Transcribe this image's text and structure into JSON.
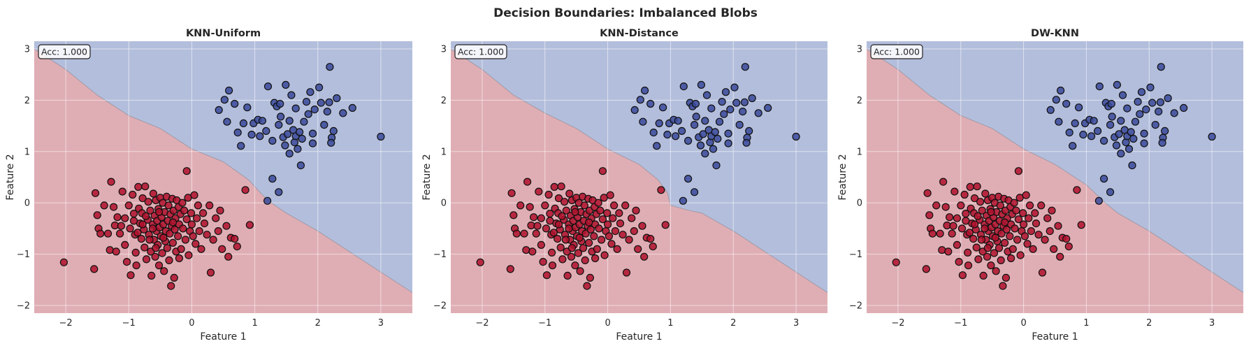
{
  "figure": {
    "title": "Decision Boundaries: Imbalanced Blobs"
  },
  "colors": {
    "region_class0": "#dfaeb4",
    "region_class1": "#b3bedc",
    "point_class0": "#b0112b",
    "point_class1": "#3a4a9a",
    "point_edge": "#111111",
    "boundary_edge": "#8f8f9a"
  },
  "chart_data": [
    {
      "type": "scatter",
      "title": "KNN-Uniform",
      "xlabel": "Feature 1",
      "ylabel": "Feature 2",
      "xlim": [
        -2.5,
        3.5
      ],
      "ylim": [
        -2.15,
        3.15
      ],
      "xticks": [
        "−2",
        "−1",
        "0",
        "1",
        "2",
        "3"
      ],
      "yticks": [
        "−2",
        "−1",
        "0",
        "1",
        "2",
        "3"
      ],
      "grid": true,
      "annotation": "Acc: 1.000",
      "boundary": [
        [
          -2.5,
          3.0
        ],
        [
          -2.0,
          2.6
        ],
        [
          -1.5,
          2.1
        ],
        [
          -1.0,
          1.7
        ],
        [
          -0.5,
          1.45
        ],
        [
          0.0,
          1.05
        ],
        [
          0.5,
          0.8
        ],
        [
          0.9,
          0.45
        ],
        [
          1.2,
          0.05
        ],
        [
          1.5,
          -0.2
        ],
        [
          2.0,
          -0.55
        ],
        [
          2.5,
          -0.95
        ],
        [
          3.0,
          -1.35
        ],
        [
          3.5,
          -1.75
        ]
      ]
    },
    {
      "type": "scatter",
      "title": "KNN-Distance",
      "xlabel": "Feature 1",
      "ylabel": "Feature 2",
      "xlim": [
        -2.5,
        3.5
      ],
      "ylim": [
        -2.15,
        3.15
      ],
      "xticks": [
        "−2",
        "−1",
        "0",
        "1",
        "2",
        "3"
      ],
      "yticks": [
        "−2",
        "−1",
        "0",
        "1",
        "2",
        "3"
      ],
      "grid": true,
      "annotation": "Acc: 1.000",
      "boundary": [
        [
          -2.5,
          3.0
        ],
        [
          -2.0,
          2.6
        ],
        [
          -1.5,
          2.1
        ],
        [
          -1.0,
          1.75
        ],
        [
          -0.5,
          1.45
        ],
        [
          0.0,
          1.05
        ],
        [
          0.5,
          0.75
        ],
        [
          0.8,
          0.45
        ],
        [
          0.95,
          0.2
        ],
        [
          1.0,
          -0.05
        ],
        [
          1.3,
          -0.15
        ],
        [
          1.5,
          -0.2
        ],
        [
          2.0,
          -0.55
        ],
        [
          2.5,
          -0.95
        ],
        [
          3.0,
          -1.35
        ],
        [
          3.5,
          -1.75
        ]
      ]
    },
    {
      "type": "scatter",
      "title": "DW-KNN",
      "xlabel": "Feature 1",
      "ylabel": "Feature 2",
      "xlim": [
        -2.5,
        3.5
      ],
      "ylim": [
        -2.15,
        3.15
      ],
      "xticks": [
        "−2",
        "−1",
        "0",
        "1",
        "2",
        "3"
      ],
      "yticks": [
        "−2",
        "−1",
        "0",
        "1",
        "2",
        "3"
      ],
      "grid": true,
      "annotation": "Acc: 1.000",
      "boundary": [
        [
          -2.5,
          3.0
        ],
        [
          -2.0,
          2.6
        ],
        [
          -1.5,
          2.1
        ],
        [
          -1.0,
          1.7
        ],
        [
          -0.5,
          1.45
        ],
        [
          0.0,
          1.05
        ],
        [
          0.5,
          0.75
        ],
        [
          1.0,
          0.35
        ],
        [
          1.3,
          0.0
        ],
        [
          1.5,
          -0.2
        ],
        [
          2.0,
          -0.55
        ],
        [
          2.5,
          -0.95
        ],
        [
          3.0,
          -1.35
        ],
        [
          3.5,
          -1.75
        ]
      ]
    }
  ],
  "points": {
    "class0": [
      [
        -2.03,
        -1.16
      ],
      [
        -1.55,
        -1.29
      ],
      [
        -1.53,
        0.19
      ],
      [
        -1.5,
        -0.24
      ],
      [
        -1.48,
        -0.5
      ],
      [
        -1.45,
        -0.6
      ],
      [
        -1.39,
        -0.05
      ],
      [
        -1.33,
        -0.6
      ],
      [
        -1.3,
        -0.92
      ],
      [
        -1.28,
        0.41
      ],
      [
        -1.24,
        -0.08
      ],
      [
        -1.22,
        -0.44
      ],
      [
        -1.2,
        -0.95
      ],
      [
        -1.18,
        -0.28
      ],
      [
        -1.14,
        -0.6
      ],
      [
        -1.1,
        0.22
      ],
      [
        -1.06,
        -0.3
      ],
      [
        -1.06,
        -0.82
      ],
      [
        -1.03,
        -1.15
      ],
      [
        -1.0,
        -0.05
      ],
      [
        -0.98,
        -0.5
      ],
      [
        -0.97,
        -1.41
      ],
      [
        -0.94,
        0.16
      ],
      [
        -0.92,
        -0.21
      ],
      [
        -0.9,
        -0.62
      ],
      [
        -0.89,
        -0.97
      ],
      [
        -0.88,
        -1.22
      ],
      [
        -0.85,
        0.31
      ],
      [
        -0.84,
        -0.11
      ],
      [
        -0.82,
        -0.4
      ],
      [
        -0.8,
        -0.7
      ],
      [
        -0.79,
        -0.2
      ],
      [
        -0.78,
        0.09
      ],
      [
        -0.76,
        -0.52
      ],
      [
        -0.75,
        -0.87
      ],
      [
        -0.74,
        0.32
      ],
      [
        -0.72,
        -1.1
      ],
      [
        -0.7,
        -0.33
      ],
      [
        -0.69,
        0.02
      ],
      [
        -0.68,
        -0.62
      ],
      [
        -0.66,
        -0.15
      ],
      [
        -0.65,
        -0.95
      ],
      [
        -0.64,
        -1.42
      ],
      [
        -0.62,
        -0.42
      ],
      [
        -0.61,
        0.18
      ],
      [
        -0.6,
        -0.72
      ],
      [
        -0.59,
        -0.25
      ],
      [
        -0.58,
        -1.05
      ],
      [
        -0.57,
        0.05
      ],
      [
        -0.56,
        -0.55
      ],
      [
        -0.55,
        -0.35
      ],
      [
        -0.54,
        -0.82
      ],
      [
        -0.53,
        -0.12
      ],
      [
        -0.52,
        -1.22
      ],
      [
        -0.51,
        -0.48
      ],
      [
        -0.5,
        0.1
      ],
      [
        -0.49,
        -0.65
      ],
      [
        -0.48,
        -0.28
      ],
      [
        -0.47,
        -0.98
      ],
      [
        -0.46,
        0.0
      ],
      [
        -0.45,
        -0.42
      ],
      [
        -0.44,
        -1.33
      ],
      [
        -0.43,
        -0.18
      ],
      [
        -0.42,
        -0.75
      ],
      [
        -0.41,
        -0.55
      ],
      [
        -0.4,
        0.12
      ],
      [
        -0.39,
        -0.88
      ],
      [
        -0.38,
        -0.35
      ],
      [
        -0.37,
        -0.05
      ],
      [
        -0.36,
        -1.12
      ],
      [
        -0.35,
        -0.6
      ],
      [
        -0.34,
        -0.22
      ],
      [
        -0.33,
        -1.62
      ],
      [
        -0.32,
        -0.45
      ],
      [
        -0.31,
        0.08
      ],
      [
        -0.3,
        -0.78
      ],
      [
        -0.29,
        -0.15
      ],
      [
        -0.28,
        -1.46
      ],
      [
        -0.27,
        -0.52
      ],
      [
        -0.26,
        -0.3
      ],
      [
        -0.25,
        -0.95
      ],
      [
        -0.24,
        0.05
      ],
      [
        -0.22,
        -0.65
      ],
      [
        -0.21,
        -0.08
      ],
      [
        -0.2,
        -0.42
      ],
      [
        -0.18,
        -0.22
      ],
      [
        -0.17,
        -0.9
      ],
      [
        -0.15,
        0.0
      ],
      [
        -0.14,
        -0.5
      ],
      [
        -0.12,
        -0.15
      ],
      [
        -0.1,
        -0.72
      ],
      [
        -0.08,
        -0.32
      ],
      [
        -0.06,
        0.1
      ],
      [
        -0.05,
        -1.02
      ],
      [
        -0.03,
        -0.55
      ],
      [
        -0.01,
        -0.2
      ],
      [
        0.0,
        -0.42
      ],
      [
        0.02,
        -0.65
      ],
      [
        0.04,
        0.15
      ],
      [
        0.06,
        -0.8
      ],
      [
        0.08,
        -0.3
      ],
      [
        0.1,
        -0.05
      ],
      [
        0.12,
        -0.55
      ],
      [
        0.15,
        -0.9
      ],
      [
        0.18,
        -0.2
      ],
      [
        0.2,
        -0.4
      ],
      [
        0.24,
        -0.62
      ],
      [
        0.28,
        -0.05
      ],
      [
        0.3,
        -1.36
      ],
      [
        0.34,
        -0.72
      ],
      [
        0.38,
        -0.3
      ],
      [
        0.42,
        -0.55
      ],
      [
        0.45,
        -0.15
      ],
      [
        0.48,
        -0.9
      ],
      [
        0.55,
        -0.45
      ],
      [
        0.58,
        -1.05
      ],
      [
        0.62,
        -0.68
      ],
      [
        0.68,
        -0.7
      ],
      [
        0.72,
        -0.85
      ],
      [
        0.85,
        0.25
      ],
      [
        0.92,
        -0.43
      ],
      [
        -0.86,
        -0.58
      ],
      [
        -0.78,
        -0.42
      ],
      [
        -0.67,
        -0.72
      ],
      [
        -0.57,
        -0.88
      ],
      [
        -0.45,
        -0.68
      ],
      [
        -0.3,
        -0.38
      ],
      [
        -0.62,
        -0.5
      ],
      [
        -0.52,
        -0.18
      ],
      [
        -0.73,
        -0.26
      ],
      [
        -0.08,
        0.62
      ],
      [
        -0.92,
        -0.35
      ],
      [
        -1.12,
        -0.45
      ],
      [
        -0.2,
        -1.08
      ]
    ],
    "class1": [
      [
        0.43,
        1.81
      ],
      [
        0.52,
        2.01
      ],
      [
        0.56,
        1.58
      ],
      [
        0.59,
        2.19
      ],
      [
        0.68,
        1.93
      ],
      [
        0.73,
        1.37
      ],
      [
        0.78,
        1.11
      ],
      [
        0.82,
        1.55
      ],
      [
        0.88,
        1.86
      ],
      [
        0.95,
        1.33
      ],
      [
        0.98,
        1.55
      ],
      [
        1.05,
        1.62
      ],
      [
        1.08,
        1.3
      ],
      [
        1.12,
        1.6
      ],
      [
        1.18,
        1.4
      ],
      [
        1.21,
        2.27
      ],
      [
        1.28,
        1.21
      ],
      [
        1.31,
        1.95
      ],
      [
        1.35,
        1.88
      ],
      [
        1.38,
        1.52
      ],
      [
        1.41,
        1.68
      ],
      [
        1.45,
        1.28
      ],
      [
        1.48,
        1.12
      ],
      [
        1.52,
        1.34
      ],
      [
        1.55,
        1.6
      ],
      [
        1.58,
        2.1
      ],
      [
        1.61,
        1.42
      ],
      [
        1.63,
        1.18
      ],
      [
        1.65,
        1.3
      ],
      [
        1.68,
        1.05
      ],
      [
        1.71,
        1.38
      ],
      [
        1.75,
        1.25
      ],
      [
        1.78,
        1.58
      ],
      [
        1.82,
        1.97
      ],
      [
        1.88,
        2.16
      ],
      [
        1.92,
        1.35
      ],
      [
        1.95,
        1.82
      ],
      [
        2.02,
        2.25
      ],
      [
        2.05,
        1.95
      ],
      [
        2.1,
        1.52
      ],
      [
        2.15,
        1.78
      ],
      [
        2.18,
        1.96
      ],
      [
        2.22,
        1.27
      ],
      [
        2.25,
        1.4
      ],
      [
        2.3,
        2.04
      ],
      [
        2.4,
        1.75
      ],
      [
        2.55,
        1.85
      ],
      [
        3.0,
        1.29
      ],
      [
        2.19,
        2.65
      ],
      [
        1.49,
        2.3
      ],
      [
        1.28,
        0.47
      ],
      [
        1.38,
        0.21
      ],
      [
        1.73,
        0.73
      ],
      [
        1.92,
        1.16
      ],
      [
        2.21,
        1.17
      ],
      [
        1.2,
        0.04
      ],
      [
        1.4,
        1.93
      ],
      [
        1.85,
        1.73
      ],
      [
        1.55,
        0.96
      ],
      [
        1.65,
        1.84
      ]
    ]
  }
}
